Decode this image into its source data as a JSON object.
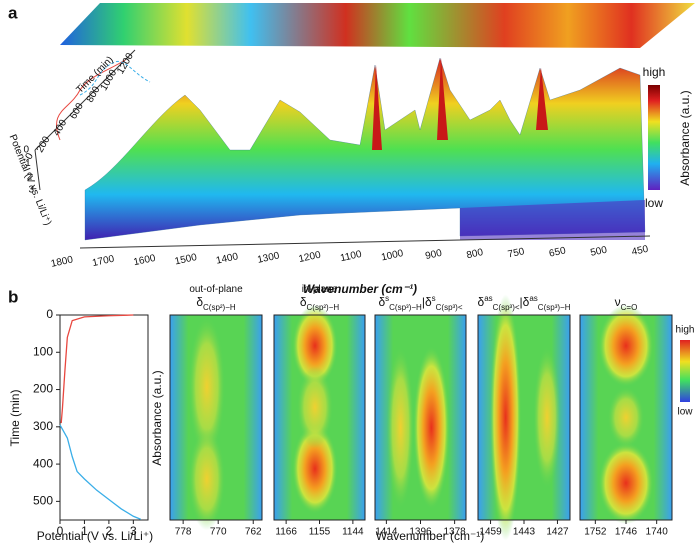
{
  "panel_a": {
    "label": "a",
    "x_label": "Wavenumber (cm⁻¹)",
    "x_ticks": [
      1800,
      1700,
      1600,
      1500,
      1400,
      1300,
      1200,
      1100,
      1000,
      900,
      800,
      750,
      650,
      500,
      450
    ],
    "colorbar": {
      "high": "high",
      "low": "low",
      "label": "Absorbance (a.u.)"
    },
    "inset": {
      "time_label": "Time (min)",
      "time_ticks": [
        0,
        200,
        400,
        600,
        800,
        1000,
        1200
      ],
      "potential_label": "Potential (V vs. Li/Li⁺)",
      "potential_ticks": [
        0,
        1,
        2,
        3
      ]
    }
  },
  "panel_b": {
    "label": "b",
    "line_chart": {
      "type": "line",
      "xlabel": "Potential (V vs. Li/Li⁺)",
      "ylabel": "Time (min)",
      "xlim": [
        0,
        3.6
      ],
      "ylim": [
        0,
        550
      ],
      "invert_y": true,
      "xticks": [
        0,
        1,
        2,
        3
      ],
      "yticks": [
        0,
        100,
        200,
        300,
        400,
        500
      ],
      "series": [
        {
          "color": "#e8473f",
          "x": [
            3.0,
            2.0,
            1.0,
            0.5,
            0.3,
            0.2,
            0.1,
            0.05
          ],
          "values": [
            0,
            2,
            5,
            15,
            60,
            150,
            250,
            290
          ]
        },
        {
          "color": "#3aaee8",
          "x": [
            0,
            0.3,
            0.5,
            0.7,
            1.0,
            1.5,
            2.0,
            2.5,
            3.0,
            3.3
          ],
          "values": [
            295,
            330,
            380,
            420,
            440,
            470,
            495,
            520,
            540,
            548
          ]
        }
      ]
    },
    "heatmap_ylabel": "Absorbance (a.u.)",
    "heatmap_xlabel": "Wavenumber (cm⁻¹)",
    "heatmaps": [
      {
        "title": [
          [
            {
              "t": "out-of-plane"
            }
          ],
          [
            {
              "t": "δ"
            },
            {
              "sub": "C(sp²)−H"
            }
          ]
        ],
        "xlim": [
          781,
          760
        ],
        "xticks": [
          778,
          770,
          762
        ]
      },
      {
        "title": [
          [
            {
              "t": "in-plane"
            }
          ],
          [
            {
              "t": "δ"
            },
            {
              "sub": "C(sp²)−H"
            }
          ]
        ],
        "xlim": [
          1170,
          1140
        ],
        "xticks": [
          1166,
          1155,
          1144
        ]
      },
      {
        "title": [
          [
            {
              "t": "δ"
            },
            {
              "sup": "s"
            },
            {
              "sub": "C(sp³)−H"
            },
            {
              "t": "|δ"
            },
            {
              "sup": "s"
            },
            {
              "sub": "C(sp³)<"
            }
          ]
        ],
        "xlim": [
          1420,
          1372
        ],
        "xticks": [
          1414,
          1396,
          1378
        ]
      },
      {
        "title": [
          [
            {
              "t": "δ"
            },
            {
              "sup": "as"
            },
            {
              "sub": "C(sp³)<"
            },
            {
              "t": "|δ"
            },
            {
              "sup": "as"
            },
            {
              "sub": "C(sp³)−H"
            }
          ]
        ],
        "xlim": [
          1465,
          1421
        ],
        "xticks": [
          1459,
          1443,
          1427
        ]
      },
      {
        "title": [
          [
            {
              "t": "ν"
            },
            {
              "sub": "C=O"
            }
          ]
        ],
        "xlim": [
          1755,
          1737
        ],
        "xticks": [
          1752,
          1746,
          1740
        ]
      }
    ],
    "colorbar": {
      "high": "high",
      "low": "low"
    }
  }
}
